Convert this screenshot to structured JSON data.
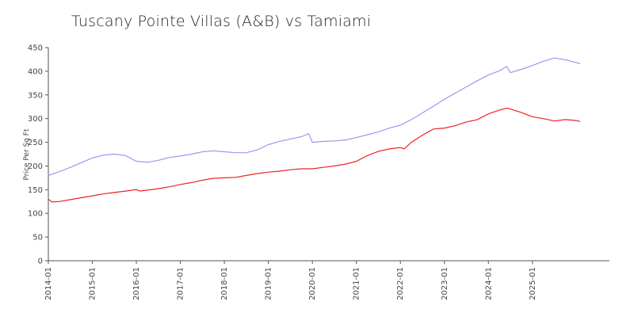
{
  "chart_data": {
    "type": "line",
    "title": "Tuscany Pointe Villas (A&B) vs Tamiami",
    "xlabel": "",
    "ylabel": "Price Per Sq Ft",
    "ylim": [
      0,
      450
    ],
    "yticks": [
      0,
      50,
      100,
      150,
      200,
      250,
      300,
      350,
      400,
      450
    ],
    "xlim": [
      "2014-01",
      "2026-10"
    ],
    "xticks": [
      "2014-01",
      "2015-01",
      "2016-01",
      "2017-01",
      "2018-01",
      "2019-01",
      "2020-01",
      "2021-01",
      "2022-01",
      "2023-01",
      "2024-01",
      "2025-01"
    ],
    "grid": false,
    "legend": "none",
    "series": [
      {
        "color": "#9999ee",
        "points": [
          [
            "2014-01",
            180
          ],
          [
            "2014-04",
            188
          ],
          [
            "2014-07",
            197
          ],
          [
            "2014-10",
            207
          ],
          [
            "2015-01",
            217
          ],
          [
            "2015-04",
            223
          ],
          [
            "2015-07",
            225
          ],
          [
            "2015-10",
            222
          ],
          [
            "2016-01",
            210
          ],
          [
            "2016-04",
            208
          ],
          [
            "2016-07",
            212
          ],
          [
            "2016-10",
            218
          ],
          [
            "2017-01",
            221
          ],
          [
            "2017-04",
            225
          ],
          [
            "2017-07",
            230
          ],
          [
            "2017-10",
            232
          ],
          [
            "2018-01",
            230
          ],
          [
            "2018-04",
            228
          ],
          [
            "2018-07",
            228
          ],
          [
            "2018-10",
            234
          ],
          [
            "2019-01",
            245
          ],
          [
            "2019-04",
            252
          ],
          [
            "2019-07",
            257
          ],
          [
            "2019-10",
            262
          ],
          [
            "2019-12",
            268
          ],
          [
            "2020-01",
            250
          ],
          [
            "2020-04",
            252
          ],
          [
            "2020-07",
            253
          ],
          [
            "2020-10",
            255
          ],
          [
            "2021-01",
            260
          ],
          [
            "2021-04",
            266
          ],
          [
            "2021-07",
            272
          ],
          [
            "2021-10",
            280
          ],
          [
            "2022-01",
            286
          ],
          [
            "2022-04",
            298
          ],
          [
            "2022-07",
            312
          ],
          [
            "2022-10",
            326
          ],
          [
            "2023-01",
            341
          ],
          [
            "2023-04",
            354
          ],
          [
            "2023-07",
            367
          ],
          [
            "2023-10",
            380
          ],
          [
            "2024-01",
            392
          ],
          [
            "2024-04",
            401
          ],
          [
            "2024-06",
            410
          ],
          [
            "2024-07",
            397
          ],
          [
            "2024-10",
            404
          ],
          [
            "2025-01",
            412
          ],
          [
            "2025-04",
            421
          ],
          [
            "2025-07",
            428
          ],
          [
            "2025-10",
            424
          ],
          [
            "2026-01",
            418
          ],
          [
            "2026-02",
            416
          ]
        ]
      },
      {
        "color": "#ee2222",
        "points": [
          [
            "2014-01",
            130
          ],
          [
            "2014-02",
            124
          ],
          [
            "2014-04",
            125
          ],
          [
            "2014-07",
            129
          ],
          [
            "2014-10",
            133
          ],
          [
            "2015-01",
            137
          ],
          [
            "2015-04",
            141
          ],
          [
            "2015-07",
            144
          ],
          [
            "2015-10",
            147
          ],
          [
            "2016-01",
            150
          ],
          [
            "2016-02",
            147
          ],
          [
            "2016-04",
            149
          ],
          [
            "2016-07",
            152
          ],
          [
            "2016-10",
            156
          ],
          [
            "2017-01",
            161
          ],
          [
            "2017-04",
            165
          ],
          [
            "2017-07",
            170
          ],
          [
            "2017-10",
            174
          ],
          [
            "2018-01",
            175
          ],
          [
            "2018-04",
            176
          ],
          [
            "2018-07",
            180
          ],
          [
            "2018-10",
            184
          ],
          [
            "2019-01",
            187
          ],
          [
            "2019-04",
            189
          ],
          [
            "2019-07",
            192
          ],
          [
            "2019-10",
            194
          ],
          [
            "2020-01",
            194
          ],
          [
            "2020-04",
            197
          ],
          [
            "2020-07",
            200
          ],
          [
            "2020-10",
            204
          ],
          [
            "2021-01",
            210
          ],
          [
            "2021-04",
            222
          ],
          [
            "2021-07",
            231
          ],
          [
            "2021-10",
            236
          ],
          [
            "2022-01",
            239
          ],
          [
            "2022-02",
            236
          ],
          [
            "2022-04",
            250
          ],
          [
            "2022-07",
            265
          ],
          [
            "2022-10",
            278
          ],
          [
            "2023-01",
            280
          ],
          [
            "2023-04",
            285
          ],
          [
            "2023-07",
            293
          ],
          [
            "2023-10",
            298
          ],
          [
            "2024-01",
            310
          ],
          [
            "2024-04",
            318
          ],
          [
            "2024-06",
            322
          ],
          [
            "2024-07",
            320
          ],
          [
            "2024-10",
            313
          ],
          [
            "2025-01",
            304
          ],
          [
            "2025-04",
            300
          ],
          [
            "2025-07",
            295
          ],
          [
            "2025-10",
            298
          ],
          [
            "2026-01",
            296
          ],
          [
            "2026-02",
            294
          ]
        ]
      }
    ]
  }
}
